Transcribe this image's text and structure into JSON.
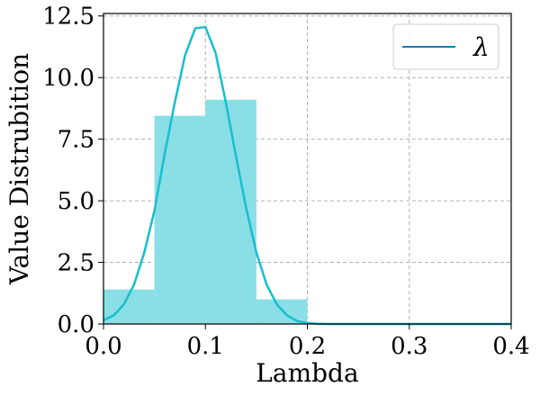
{
  "chart_data": {
    "type": "bar+line",
    "xlabel": "Lambda",
    "ylabel": "Value Distrubition",
    "xlim": [
      0.0,
      0.4
    ],
    "ylim": [
      0.0,
      12.6
    ],
    "xticks": [
      "0.0",
      "0.1",
      "0.2",
      "0.3",
      "0.4"
    ],
    "xtick_values": [
      0.0,
      0.1,
      0.2,
      0.3,
      0.4
    ],
    "yticks": [
      "0.0",
      "2.5",
      "5.0",
      "7.5",
      "10.0",
      "12.5"
    ],
    "ytick_values": [
      0.0,
      2.5,
      5.0,
      7.5,
      10.0,
      12.5
    ],
    "grid": true,
    "legend": {
      "placement": "top-right",
      "entries": [
        "λ"
      ]
    },
    "histogram": {
      "color": "#8adfe6",
      "bins": [
        {
          "x0": 0.0,
          "x1": 0.05,
          "value": 1.4
        },
        {
          "x0": 0.05,
          "x1": 0.1,
          "value": 8.45
        },
        {
          "x0": 0.1,
          "x1": 0.15,
          "value": 9.1
        },
        {
          "x0": 0.15,
          "x1": 0.2,
          "value": 1.0
        }
      ]
    },
    "line": {
      "name": "λ",
      "color": "#17becf",
      "legend_color": "#1f77b4",
      "x": [
        0.0,
        0.01,
        0.02,
        0.03,
        0.04,
        0.05,
        0.06,
        0.07,
        0.08,
        0.09,
        0.1,
        0.11,
        0.12,
        0.13,
        0.14,
        0.15,
        0.16,
        0.17,
        0.18,
        0.19,
        0.2,
        0.21,
        0.22,
        0.25,
        0.3,
        0.35,
        0.4
      ],
      "y": [
        0.15,
        0.35,
        0.8,
        1.6,
        2.9,
        4.6,
        6.9,
        9.0,
        10.9,
        12.0,
        12.05,
        11.0,
        9.0,
        6.8,
        4.7,
        2.9,
        1.6,
        0.8,
        0.35,
        0.12,
        0.04,
        0.01,
        0.0,
        0.0,
        0.0,
        0.0,
        0.0
      ]
    }
  }
}
